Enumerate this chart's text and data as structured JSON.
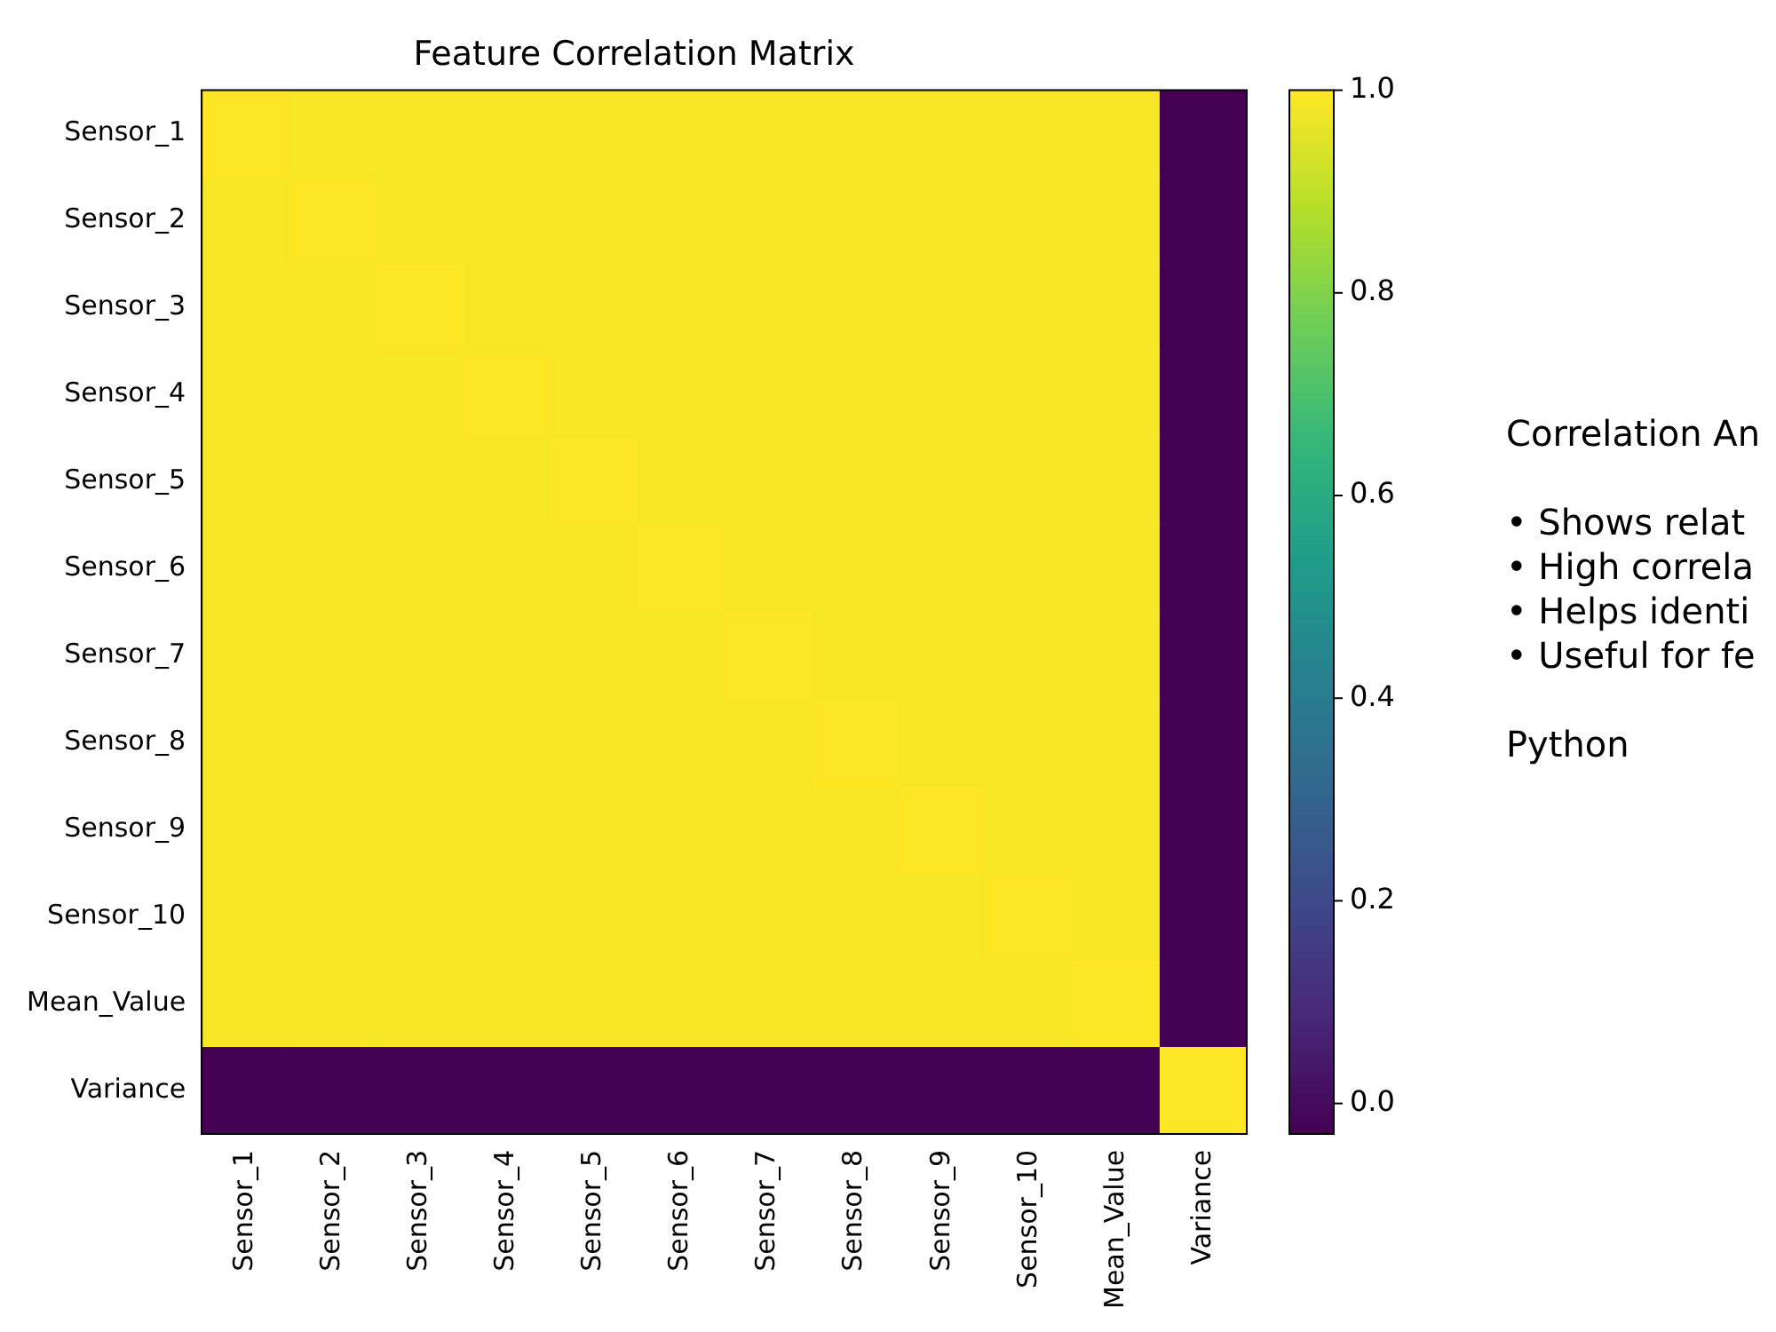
{
  "chart_data": {
    "type": "heatmap",
    "title": "Feature Correlation Matrix",
    "categories": [
      "Sensor_1",
      "Sensor_2",
      "Sensor_3",
      "Sensor_4",
      "Sensor_5",
      "Sensor_6",
      "Sensor_7",
      "Sensor_8",
      "Sensor_9",
      "Sensor_10",
      "Mean_Value",
      "Variance"
    ],
    "y_categories": [
      "Sensor_1",
      "Sensor_2",
      "Sensor_3",
      "Sensor_4",
      "Sensor_5",
      "Sensor_6",
      "Sensor_7",
      "Sensor_8",
      "Sensor_9",
      "Sensor_10",
      "Mean_Value",
      "Variance"
    ],
    "cells": [
      [
        1,
        0.99,
        0.99,
        0.99,
        0.99,
        0.99,
        0.99,
        0.99,
        0.99,
        0.99,
        0.99,
        -0.03
      ],
      [
        0.99,
        1,
        0.99,
        0.99,
        0.99,
        0.99,
        0.99,
        0.99,
        0.99,
        0.99,
        0.99,
        -0.03
      ],
      [
        0.99,
        0.99,
        1,
        0.99,
        0.99,
        0.99,
        0.99,
        0.99,
        0.99,
        0.99,
        0.99,
        -0.03
      ],
      [
        0.99,
        0.99,
        0.99,
        1,
        0.99,
        0.99,
        0.99,
        0.99,
        0.99,
        0.99,
        0.99,
        -0.03
      ],
      [
        0.99,
        0.99,
        0.99,
        0.99,
        1,
        0.99,
        0.99,
        0.99,
        0.99,
        0.99,
        0.99,
        -0.03
      ],
      [
        0.99,
        0.99,
        0.99,
        0.99,
        0.99,
        1,
        0.99,
        0.99,
        0.99,
        0.99,
        0.99,
        -0.03
      ],
      [
        0.99,
        0.99,
        0.99,
        0.99,
        0.99,
        0.99,
        1,
        0.99,
        0.99,
        0.99,
        0.99,
        -0.03
      ],
      [
        0.99,
        0.99,
        0.99,
        0.99,
        0.99,
        0.99,
        0.99,
        1,
        0.99,
        0.99,
        0.99,
        -0.03
      ],
      [
        0.99,
        0.99,
        0.99,
        0.99,
        0.99,
        0.99,
        0.99,
        0.99,
        1,
        0.99,
        0.99,
        -0.03
      ],
      [
        0.99,
        0.99,
        0.99,
        0.99,
        0.99,
        0.99,
        0.99,
        0.99,
        0.99,
        1,
        0.99,
        -0.03
      ],
      [
        0.99,
        0.99,
        0.99,
        0.99,
        0.99,
        0.99,
        0.99,
        0.99,
        0.99,
        0.99,
        1,
        -0.03
      ],
      [
        -0.03,
        -0.03,
        -0.03,
        -0.03,
        -0.03,
        -0.03,
        -0.03,
        -0.03,
        -0.03,
        -0.03,
        -0.03,
        1
      ]
    ],
    "clim": [
      -0.03,
      1
    ],
    "cticks": [
      {
        "value": 0,
        "label": "0.0"
      },
      0.2,
      0.4,
      0.6,
      0.8,
      {
        "value": 1,
        "label": "1.0"
      }
    ],
    "annotations": [
      "Correlation An",
      "• Shows relat",
      "• High correla",
      "• Helps identi",
      "• Useful for fe",
      "Python"
    ]
  }
}
